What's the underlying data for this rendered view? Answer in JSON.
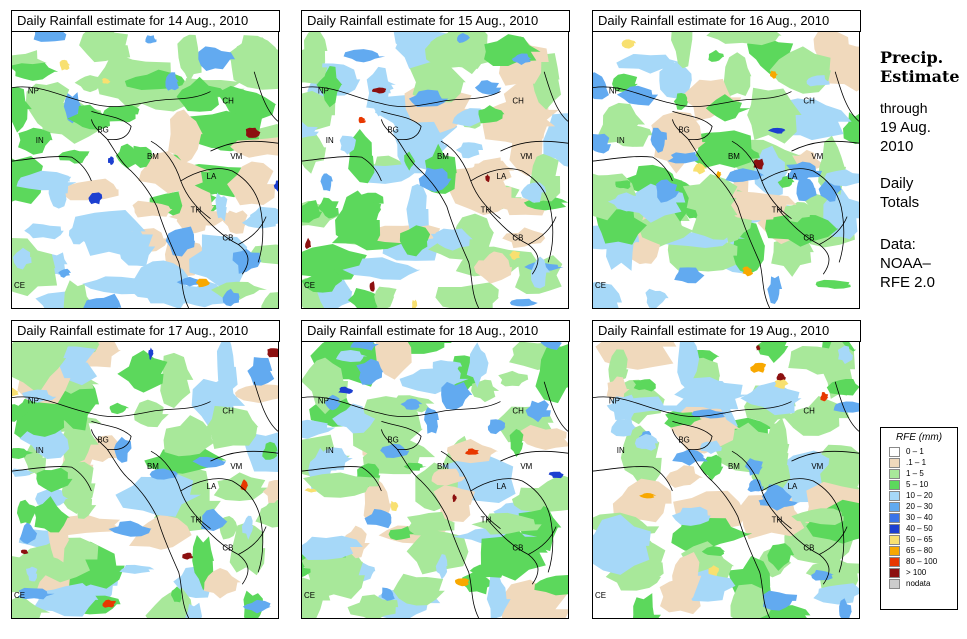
{
  "panels": [
    {
      "title": "Daily Rainfall estimate for  14 Aug., 2010"
    },
    {
      "title": "Daily Rainfall estimate for  15 Aug., 2010"
    },
    {
      "title": "Daily Rainfall estimate for  16 Aug., 2010"
    },
    {
      "title": "Daily Rainfall estimate for  17 Aug., 2010"
    },
    {
      "title": "Daily Rainfall estimate for  18 Aug., 2010"
    },
    {
      "title": "Daily Rainfall estimate for  19 Aug., 2010"
    }
  ],
  "country_labels": [
    "NP",
    "IN",
    "BG",
    "BM",
    "CH",
    "VM",
    "LA",
    "TH",
    "CB",
    "CE"
  ],
  "sidebar": {
    "precip_line1": "Precip.",
    "precip_line2": "Estimate",
    "through_label": "through",
    "date_line1": "19 Aug.",
    "date_line2": "2010",
    "daily_line1": "Daily",
    "daily_line2": "Totals",
    "data_line1": "Data:",
    "data_line2": "NOAA–",
    "data_line3": "RFE 2.0"
  },
  "legend": {
    "title": "RFE (mm)",
    "classes": [
      {
        "label": "0 – 1",
        "color": "#ffffff"
      },
      {
        "label": ".1 – 1",
        "color": "#f0d9bc"
      },
      {
        "label": "1 – 5",
        "color": "#a8e89a"
      },
      {
        "label": "5 – 10",
        "color": "#5cd85c"
      },
      {
        "label": "10 – 20",
        "color": "#a6d8f8"
      },
      {
        "label": "20 – 30",
        "color": "#62aaf0"
      },
      {
        "label": "30 – 40",
        "color": "#3a74e8"
      },
      {
        "label": "40 – 50",
        "color": "#1c3fd0"
      },
      {
        "label": "50 – 65",
        "color": "#f8e070"
      },
      {
        "label": "65 – 80",
        "color": "#f8a800"
      },
      {
        "label": "80 – 100",
        "color": "#e83800"
      },
      {
        "label": "> 100",
        "color": "#8c1010"
      },
      {
        "label": "nodata",
        "color": "#cccccc"
      }
    ]
  },
  "colors": {
    "land_light": "#a8e89a",
    "land_green": "#5cd85c",
    "dry": "#f0d9bc",
    "light_blue": "#a6d8f8",
    "mid_blue": "#62aaf0",
    "deep_blue": "#1c3fd0",
    "red": "#e83800",
    "dark_red": "#8c1010",
    "yellow": "#f8e070",
    "orange": "#f8a800"
  }
}
